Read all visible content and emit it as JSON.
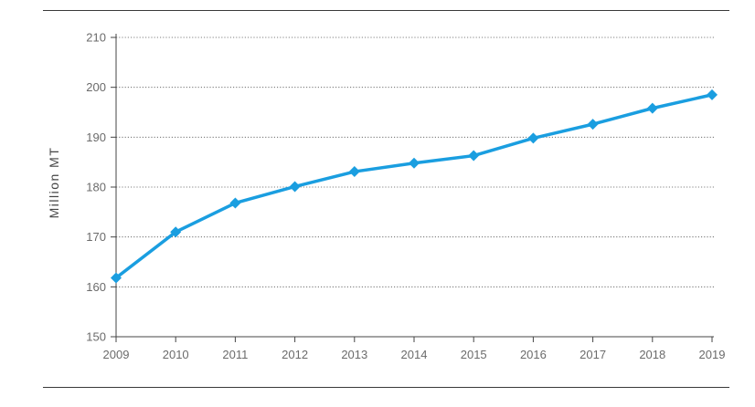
{
  "chart_data": {
    "type": "line",
    "title": "",
    "xlabel": "",
    "ylabel": "Million MT",
    "x": [
      "2009",
      "2010",
      "2011",
      "2012",
      "2013",
      "2014",
      "2015",
      "2016",
      "2017",
      "2018",
      "2019"
    ],
    "series": [
      {
        "values": [
          161.8,
          171.0,
          176.8,
          180.1,
          183.1,
          184.8,
          186.3,
          189.8,
          192.6,
          195.8,
          198.5
        ]
      }
    ],
    "yticks": [
      "150",
      "160",
      "170",
      "180",
      "190",
      "200",
      "210"
    ],
    "ylim": [
      150,
      210
    ],
    "grid": true,
    "grid_style": "dotted horizontal",
    "legend": "none",
    "line_color": "#1a9ee0",
    "marker": "diamond"
  }
}
